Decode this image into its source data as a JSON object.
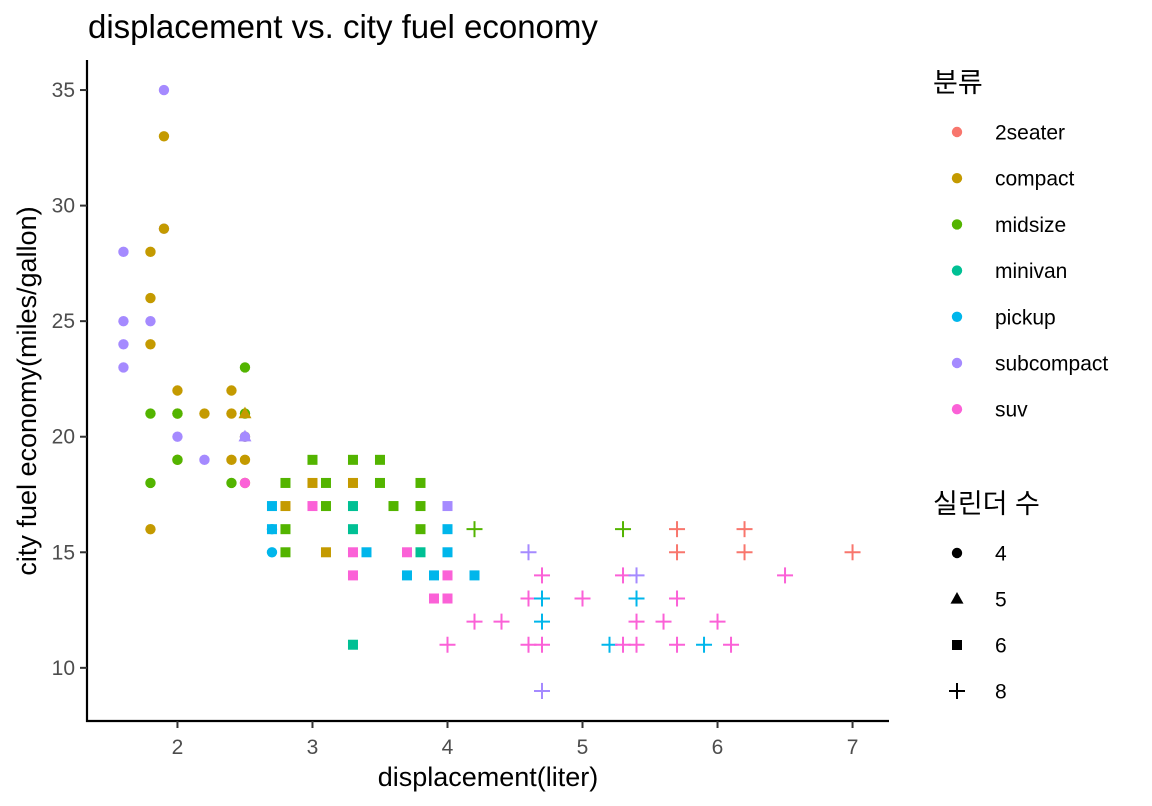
{
  "chart_data": {
    "type": "scatter",
    "title": "displacement vs. city fuel economy",
    "xlabel": "displacement(liter)",
    "ylabel": "city fuel economy(miles/gallon)",
    "xlim": [
      1.33,
      7.27
    ],
    "ylim": [
      7.7,
      36.3
    ],
    "x_ticks": [
      2,
      3,
      4,
      5,
      6,
      7
    ],
    "y_ticks": [
      10,
      15,
      20,
      25,
      30,
      35
    ],
    "grid": false,
    "legend_placement": "right",
    "color_legend": {
      "title": "분류",
      "entries": [
        {
          "label": "2seater",
          "color": "#F8766D"
        },
        {
          "label": "compact",
          "color": "#C49A00"
        },
        {
          "label": "midsize",
          "color": "#53B400"
        },
        {
          "label": "minivan",
          "color": "#00C094"
        },
        {
          "label": "pickup",
          "color": "#00B6EB"
        },
        {
          "label": "subcompact",
          "color": "#A58AFF"
        },
        {
          "label": "suv",
          "color": "#FB61D7"
        }
      ]
    },
    "shape_legend": {
      "title": "실린더 수",
      "entries": [
        {
          "label": "4",
          "shape": "circle"
        },
        {
          "label": "5",
          "shape": "triangle"
        },
        {
          "label": "6",
          "shape": "square"
        },
        {
          "label": "8",
          "shape": "plus"
        }
      ]
    },
    "points": [
      {
        "x": 1.6,
        "y": 28,
        "class": "subcompact",
        "cyl": 4
      },
      {
        "x": 1.6,
        "y": 25,
        "class": "subcompact",
        "cyl": 4
      },
      {
        "x": 1.6,
        "y": 24,
        "class": "subcompact",
        "cyl": 4
      },
      {
        "x": 1.6,
        "y": 23,
        "class": "subcompact",
        "cyl": 4
      },
      {
        "x": 1.8,
        "y": 28,
        "class": "compact",
        "cyl": 4
      },
      {
        "x": 1.8,
        "y": 26,
        "class": "compact",
        "cyl": 4
      },
      {
        "x": 1.8,
        "y": 24,
        "class": "compact",
        "cyl": 4
      },
      {
        "x": 1.8,
        "y": 16,
        "class": "compact",
        "cyl": 4
      },
      {
        "x": 1.8,
        "y": 21,
        "class": "midsize",
        "cyl": 4
      },
      {
        "x": 1.8,
        "y": 18,
        "class": "midsize",
        "cyl": 4
      },
      {
        "x": 1.8,
        "y": 25,
        "class": "subcompact",
        "cyl": 4
      },
      {
        "x": 1.9,
        "y": 35,
        "class": "subcompact",
        "cyl": 4
      },
      {
        "x": 1.9,
        "y": 29,
        "class": "subcompact",
        "cyl": 4
      },
      {
        "x": 1.9,
        "y": 33,
        "class": "compact",
        "cyl": 4
      },
      {
        "x": 1.9,
        "y": 29,
        "class": "compact",
        "cyl": 4
      },
      {
        "x": 2.0,
        "y": 22,
        "class": "compact",
        "cyl": 4
      },
      {
        "x": 2.0,
        "y": 21,
        "class": "compact",
        "cyl": 4
      },
      {
        "x": 2.0,
        "y": 19,
        "class": "compact",
        "cyl": 4
      },
      {
        "x": 2.0,
        "y": 21,
        "class": "midsize",
        "cyl": 4
      },
      {
        "x": 2.0,
        "y": 19,
        "class": "midsize",
        "cyl": 4
      },
      {
        "x": 2.0,
        "y": 20,
        "class": "subcompact",
        "cyl": 4
      },
      {
        "x": 2.2,
        "y": 21,
        "class": "compact",
        "cyl": 4
      },
      {
        "x": 2.2,
        "y": 19,
        "class": "subcompact",
        "cyl": 4
      },
      {
        "x": 2.4,
        "y": 22,
        "class": "compact",
        "cyl": 4
      },
      {
        "x": 2.4,
        "y": 21,
        "class": "compact",
        "cyl": 4
      },
      {
        "x": 2.4,
        "y": 19,
        "class": "compact",
        "cyl": 4
      },
      {
        "x": 2.4,
        "y": 18,
        "class": "midsize",
        "cyl": 4
      },
      {
        "x": 2.5,
        "y": 23,
        "class": "midsize",
        "cyl": 4
      },
      {
        "x": 2.5,
        "y": 21,
        "class": "midsize",
        "cyl": 4
      },
      {
        "x": 2.5,
        "y": 20,
        "class": "compact",
        "cyl": 4
      },
      {
        "x": 2.5,
        "y": 19,
        "class": "compact",
        "cyl": 4
      },
      {
        "x": 2.5,
        "y": 18,
        "class": "compact",
        "cyl": 4
      },
      {
        "x": 2.5,
        "y": 20,
        "class": "subcompact",
        "cyl": 4
      },
      {
        "x": 2.5,
        "y": 18,
        "class": "suv",
        "cyl": 4
      },
      {
        "x": 2.5,
        "y": 21,
        "class": "compact",
        "cyl": 5
      },
      {
        "x": 2.5,
        "y": 20,
        "class": "subcompact",
        "cyl": 5
      },
      {
        "x": 2.7,
        "y": 16,
        "class": "pickup",
        "cyl": 4
      },
      {
        "x": 2.7,
        "y": 15,
        "class": "pickup",
        "cyl": 4
      },
      {
        "x": 2.7,
        "y": 17,
        "class": "pickup",
        "cyl": 6
      },
      {
        "x": 2.7,
        "y": 16,
        "class": "pickup",
        "cyl": 6
      },
      {
        "x": 2.8,
        "y": 18,
        "class": "midsize",
        "cyl": 6
      },
      {
        "x": 2.8,
        "y": 16,
        "class": "midsize",
        "cyl": 6
      },
      {
        "x": 2.8,
        "y": 15,
        "class": "midsize",
        "cyl": 6
      },
      {
        "x": 2.8,
        "y": 17,
        "class": "compact",
        "cyl": 6
      },
      {
        "x": 3.0,
        "y": 19,
        "class": "midsize",
        "cyl": 6
      },
      {
        "x": 3.0,
        "y": 18,
        "class": "compact",
        "cyl": 6
      },
      {
        "x": 3.0,
        "y": 17,
        "class": "suv",
        "cyl": 6
      },
      {
        "x": 3.1,
        "y": 18,
        "class": "midsize",
        "cyl": 6
      },
      {
        "x": 3.1,
        "y": 17,
        "class": "midsize",
        "cyl": 6
      },
      {
        "x": 3.1,
        "y": 15,
        "class": "compact",
        "cyl": 6
      },
      {
        "x": 3.3,
        "y": 19,
        "class": "midsize",
        "cyl": 6
      },
      {
        "x": 3.3,
        "y": 18,
        "class": "compact",
        "cyl": 6
      },
      {
        "x": 3.3,
        "y": 17,
        "class": "minivan",
        "cyl": 6
      },
      {
        "x": 3.3,
        "y": 16,
        "class": "minivan",
        "cyl": 6
      },
      {
        "x": 3.3,
        "y": 11,
        "class": "minivan",
        "cyl": 6
      },
      {
        "x": 3.3,
        "y": 15,
        "class": "suv",
        "cyl": 6
      },
      {
        "x": 3.3,
        "y": 14,
        "class": "suv",
        "cyl": 6
      },
      {
        "x": 3.4,
        "y": 15,
        "class": "pickup",
        "cyl": 6
      },
      {
        "x": 3.5,
        "y": 19,
        "class": "midsize",
        "cyl": 6
      },
      {
        "x": 3.5,
        "y": 18,
        "class": "midsize",
        "cyl": 6
      },
      {
        "x": 3.6,
        "y": 17,
        "class": "midsize",
        "cyl": 6
      },
      {
        "x": 3.7,
        "y": 15,
        "class": "suv",
        "cyl": 6
      },
      {
        "x": 3.7,
        "y": 14,
        "class": "pickup",
        "cyl": 6
      },
      {
        "x": 3.8,
        "y": 18,
        "class": "midsize",
        "cyl": 6
      },
      {
        "x": 3.8,
        "y": 17,
        "class": "midsize",
        "cyl": 6
      },
      {
        "x": 3.8,
        "y": 16,
        "class": "midsize",
        "cyl": 6
      },
      {
        "x": 3.8,
        "y": 15,
        "class": "minivan",
        "cyl": 6
      },
      {
        "x": 3.9,
        "y": 14,
        "class": "pickup",
        "cyl": 6
      },
      {
        "x": 3.9,
        "y": 13,
        "class": "suv",
        "cyl": 6
      },
      {
        "x": 4.0,
        "y": 17,
        "class": "subcompact",
        "cyl": 6
      },
      {
        "x": 4.0,
        "y": 16,
        "class": "pickup",
        "cyl": 6
      },
      {
        "x": 4.0,
        "y": 15,
        "class": "pickup",
        "cyl": 6
      },
      {
        "x": 4.0,
        "y": 14,
        "class": "suv",
        "cyl": 6
      },
      {
        "x": 4.0,
        "y": 13,
        "class": "suv",
        "cyl": 6
      },
      {
        "x": 4.2,
        "y": 14,
        "class": "pickup",
        "cyl": 6
      },
      {
        "x": 4.0,
        "y": 11,
        "class": "suv",
        "cyl": 8
      },
      {
        "x": 4.2,
        "y": 16,
        "class": "midsize",
        "cyl": 8
      },
      {
        "x": 4.2,
        "y": 12,
        "class": "suv",
        "cyl": 8
      },
      {
        "x": 4.4,
        "y": 12,
        "class": "suv",
        "cyl": 8
      },
      {
        "x": 4.6,
        "y": 15,
        "class": "subcompact",
        "cyl": 8
      },
      {
        "x": 4.6,
        "y": 13,
        "class": "suv",
        "cyl": 8
      },
      {
        "x": 4.6,
        "y": 11,
        "class": "suv",
        "cyl": 8
      },
      {
        "x": 4.7,
        "y": 14,
        "class": "suv",
        "cyl": 8
      },
      {
        "x": 4.7,
        "y": 13,
        "class": "pickup",
        "cyl": 8
      },
      {
        "x": 4.7,
        "y": 12,
        "class": "pickup",
        "cyl": 8
      },
      {
        "x": 4.7,
        "y": 11,
        "class": "suv",
        "cyl": 8
      },
      {
        "x": 4.7,
        "y": 9,
        "class": "suv",
        "cyl": 8
      },
      {
        "x": 4.7,
        "y": 9,
        "class": "subcompact",
        "cyl": 8
      },
      {
        "x": 5.0,
        "y": 13,
        "class": "suv",
        "cyl": 8
      },
      {
        "x": 5.2,
        "y": 11,
        "class": "pickup",
        "cyl": 8
      },
      {
        "x": 5.3,
        "y": 16,
        "class": "midsize",
        "cyl": 8
      },
      {
        "x": 5.3,
        "y": 14,
        "class": "suv",
        "cyl": 8
      },
      {
        "x": 5.3,
        "y": 11,
        "class": "suv",
        "cyl": 8
      },
      {
        "x": 5.4,
        "y": 14,
        "class": "subcompact",
        "cyl": 8
      },
      {
        "x": 5.4,
        "y": 13,
        "class": "pickup",
        "cyl": 8
      },
      {
        "x": 5.4,
        "y": 12,
        "class": "suv",
        "cyl": 8
      },
      {
        "x": 5.4,
        "y": 11,
        "class": "suv",
        "cyl": 8
      },
      {
        "x": 5.6,
        "y": 12,
        "class": "suv",
        "cyl": 8
      },
      {
        "x": 5.7,
        "y": 16,
        "class": "2seater",
        "cyl": 8
      },
      {
        "x": 5.7,
        "y": 15,
        "class": "2seater",
        "cyl": 8
      },
      {
        "x": 5.7,
        "y": 13,
        "class": "suv",
        "cyl": 8
      },
      {
        "x": 5.7,
        "y": 11,
        "class": "suv",
        "cyl": 8
      },
      {
        "x": 5.9,
        "y": 11,
        "class": "pickup",
        "cyl": 8
      },
      {
        "x": 6.0,
        "y": 12,
        "class": "suv",
        "cyl": 8
      },
      {
        "x": 6.1,
        "y": 11,
        "class": "suv",
        "cyl": 8
      },
      {
        "x": 6.2,
        "y": 16,
        "class": "2seater",
        "cyl": 8
      },
      {
        "x": 6.2,
        "y": 15,
        "class": "2seater",
        "cyl": 8
      },
      {
        "x": 6.5,
        "y": 14,
        "class": "suv",
        "cyl": 8
      },
      {
        "x": 7.0,
        "y": 15,
        "class": "2seater",
        "cyl": 8
      }
    ]
  }
}
